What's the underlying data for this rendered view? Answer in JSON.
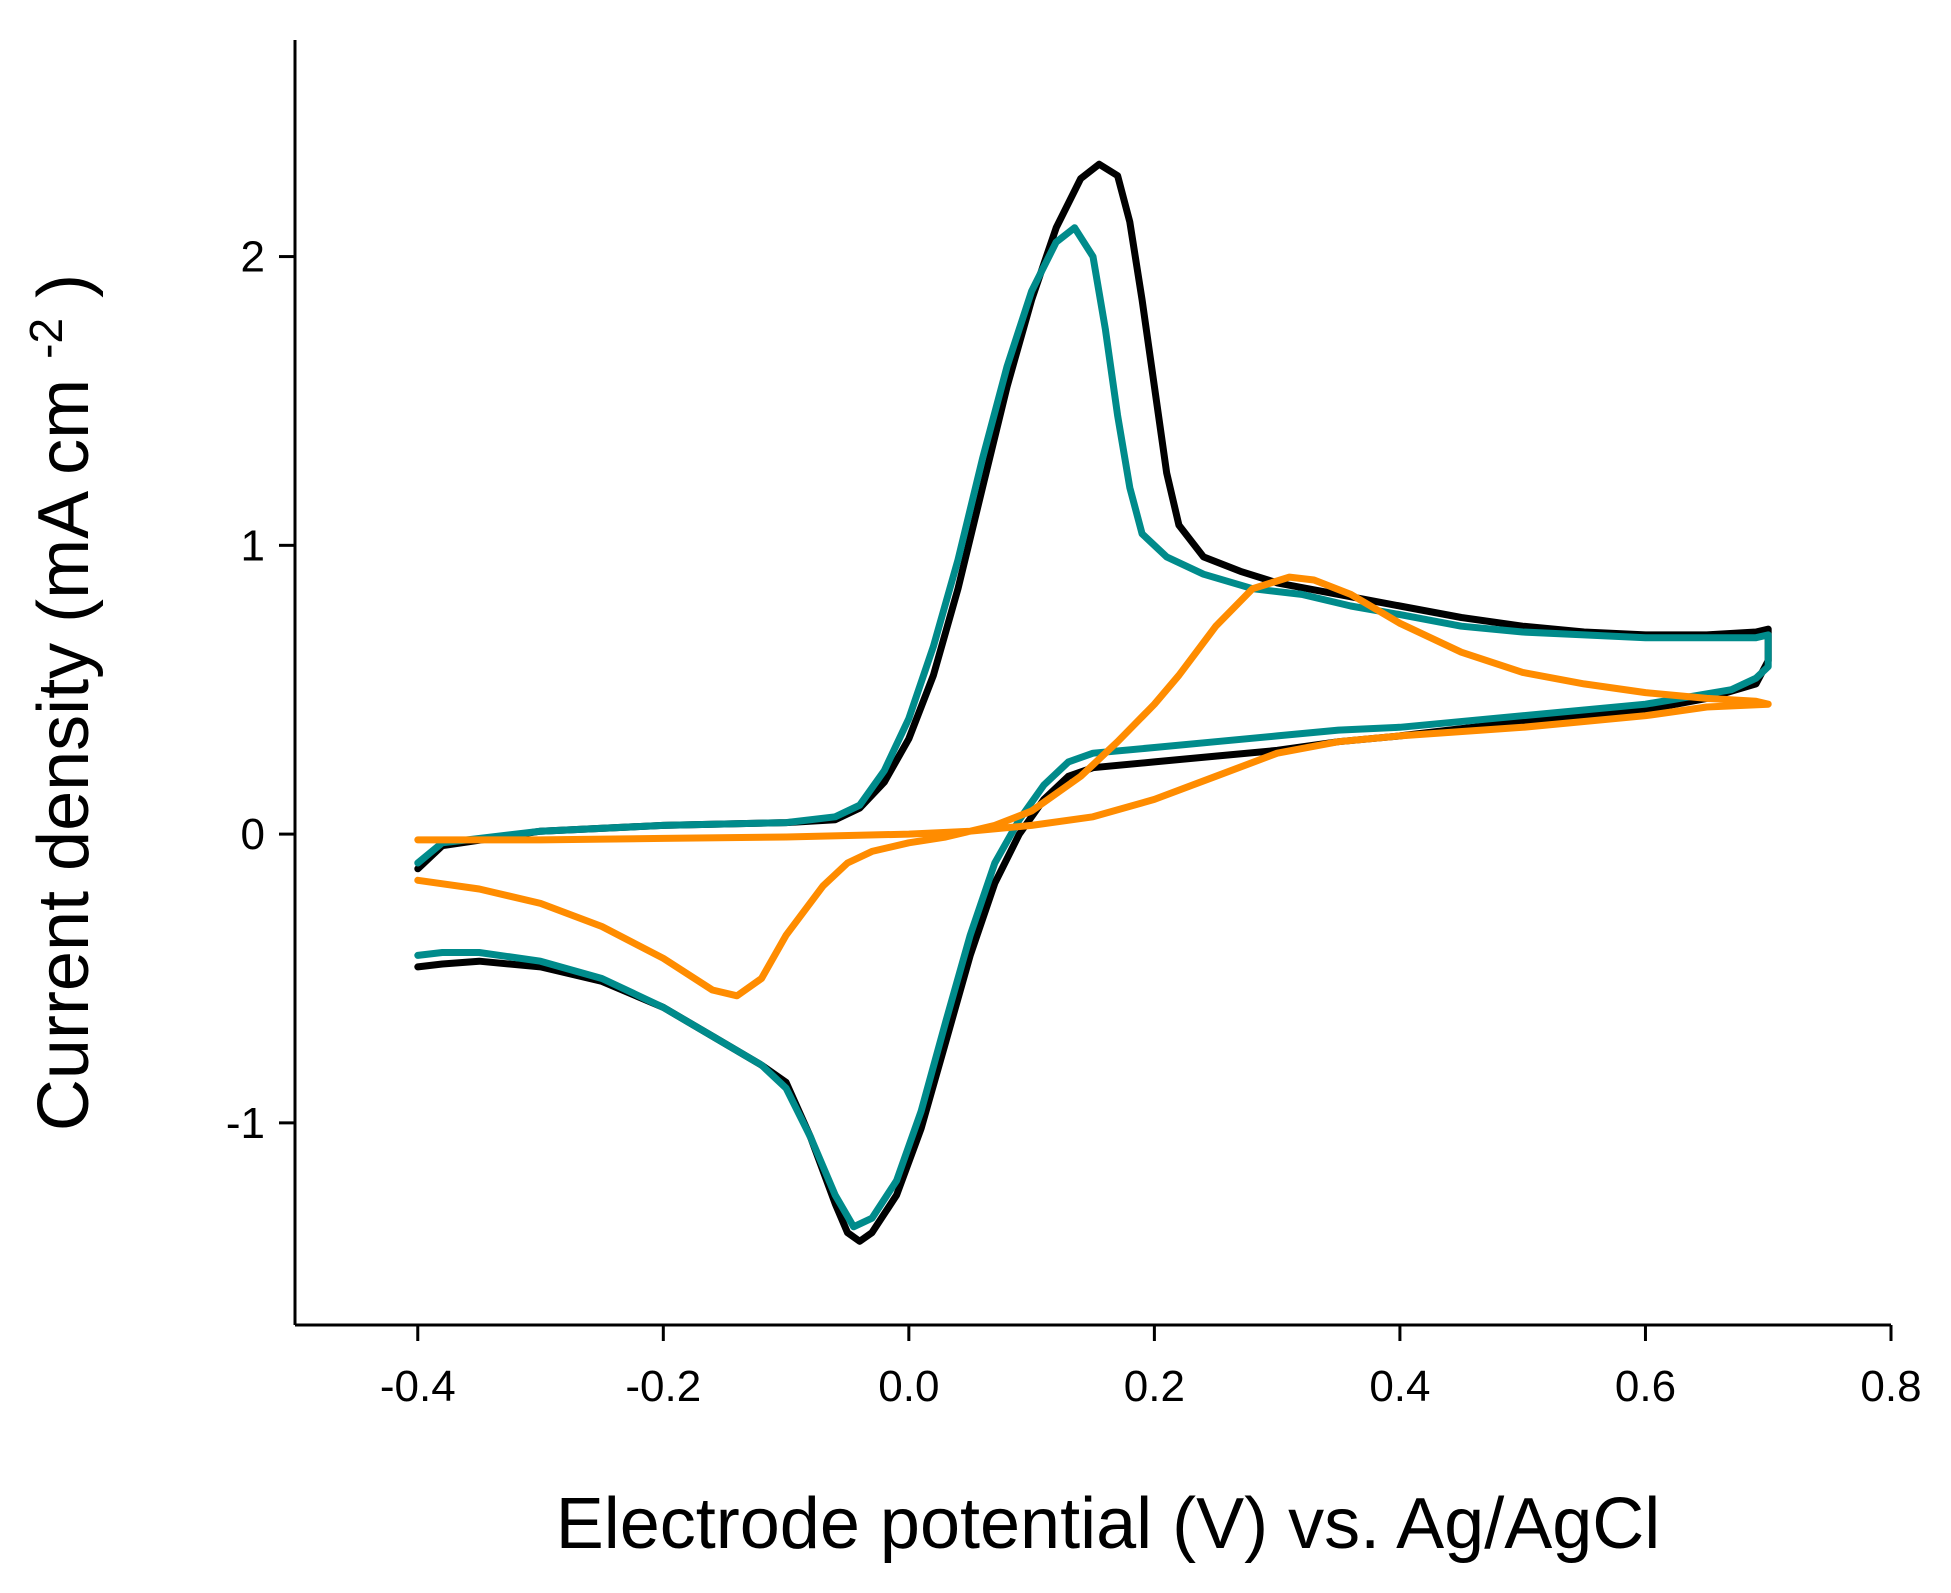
{
  "chart_data": {
    "type": "line",
    "title": "",
    "xlabel": "Electrode potential (V) vs. Ag/AgCl",
    "ylabel": {
      "main": "Current density (mA cm",
      "sup": "-2",
      "close": ")"
    },
    "xlim": [
      -0.5,
      0.8
    ],
    "ylim": [
      -1.7,
      2.75
    ],
    "x_ticks": [
      {
        "value": -0.4,
        "label": "-0.4"
      },
      {
        "value": -0.2,
        "label": "-0.2"
      },
      {
        "value": 0.0,
        "label": "0.0"
      },
      {
        "value": 0.2,
        "label": "0.2"
      },
      {
        "value": 0.4,
        "label": "0.4"
      },
      {
        "value": 0.6,
        "label": "0.6"
      },
      {
        "value": 0.8,
        "label": "0.8"
      }
    ],
    "y_ticks": [
      {
        "value": -1,
        "label": "-1"
      },
      {
        "value": 0,
        "label": "0"
      },
      {
        "value": 1,
        "label": "1"
      },
      {
        "value": 2,
        "label": "2"
      }
    ],
    "grid": false,
    "legend": "none",
    "series": [
      {
        "color": "#000000",
        "points": [
          [
            -0.4,
            -0.12
          ],
          [
            -0.38,
            -0.04
          ],
          [
            -0.3,
            0.01
          ],
          [
            -0.2,
            0.03
          ],
          [
            -0.1,
            0.04
          ],
          [
            -0.06,
            0.05
          ],
          [
            -0.04,
            0.09
          ],
          [
            -0.02,
            0.18
          ],
          [
            0.0,
            0.33
          ],
          [
            0.02,
            0.55
          ],
          [
            0.04,
            0.85
          ],
          [
            0.06,
            1.2
          ],
          [
            0.08,
            1.55
          ],
          [
            0.1,
            1.85
          ],
          [
            0.12,
            2.1
          ],
          [
            0.14,
            2.27
          ],
          [
            0.155,
            2.32
          ],
          [
            0.17,
            2.28
          ],
          [
            0.18,
            2.12
          ],
          [
            0.19,
            1.85
          ],
          [
            0.2,
            1.55
          ],
          [
            0.21,
            1.25
          ],
          [
            0.22,
            1.07
          ],
          [
            0.24,
            0.96
          ],
          [
            0.27,
            0.91
          ],
          [
            0.3,
            0.87
          ],
          [
            0.35,
            0.83
          ],
          [
            0.4,
            0.79
          ],
          [
            0.45,
            0.75
          ],
          [
            0.5,
            0.72
          ],
          [
            0.55,
            0.7
          ],
          [
            0.6,
            0.69
          ],
          [
            0.65,
            0.69
          ],
          [
            0.69,
            0.7
          ],
          [
            0.7,
            0.71
          ],
          [
            0.7,
            0.6
          ],
          [
            0.69,
            0.52
          ],
          [
            0.65,
            0.47
          ],
          [
            0.6,
            0.43
          ],
          [
            0.5,
            0.39
          ],
          [
            0.4,
            0.34
          ],
          [
            0.35,
            0.32
          ],
          [
            0.3,
            0.29
          ],
          [
            0.25,
            0.27
          ],
          [
            0.2,
            0.25
          ],
          [
            0.15,
            0.23
          ],
          [
            0.13,
            0.2
          ],
          [
            0.11,
            0.12
          ],
          [
            0.09,
            0.0
          ],
          [
            0.07,
            -0.17
          ],
          [
            0.05,
            -0.42
          ],
          [
            0.03,
            -0.72
          ],
          [
            0.01,
            -1.02
          ],
          [
            -0.01,
            -1.25
          ],
          [
            -0.03,
            -1.38
          ],
          [
            -0.04,
            -1.41
          ],
          [
            -0.05,
            -1.38
          ],
          [
            -0.06,
            -1.28
          ],
          [
            -0.08,
            -1.05
          ],
          [
            -0.1,
            -0.86
          ],
          [
            -0.12,
            -0.8
          ],
          [
            -0.16,
            -0.7
          ],
          [
            -0.2,
            -0.6
          ],
          [
            -0.25,
            -0.51
          ],
          [
            -0.3,
            -0.46
          ],
          [
            -0.35,
            -0.44
          ],
          [
            -0.38,
            -0.45
          ],
          [
            -0.4,
            -0.46
          ]
        ]
      },
      {
        "color": "#008B8B",
        "points": [
          [
            -0.4,
            -0.1
          ],
          [
            -0.38,
            -0.03
          ],
          [
            -0.3,
            0.01
          ],
          [
            -0.2,
            0.03
          ],
          [
            -0.1,
            0.04
          ],
          [
            -0.06,
            0.06
          ],
          [
            -0.04,
            0.1
          ],
          [
            -0.02,
            0.22
          ],
          [
            0.0,
            0.4
          ],
          [
            0.02,
            0.65
          ],
          [
            0.04,
            0.95
          ],
          [
            0.06,
            1.3
          ],
          [
            0.08,
            1.62
          ],
          [
            0.1,
            1.88
          ],
          [
            0.12,
            2.05
          ],
          [
            0.135,
            2.1
          ],
          [
            0.15,
            2.0
          ],
          [
            0.16,
            1.75
          ],
          [
            0.17,
            1.45
          ],
          [
            0.18,
            1.2
          ],
          [
            0.19,
            1.04
          ],
          [
            0.21,
            0.96
          ],
          [
            0.24,
            0.9
          ],
          [
            0.28,
            0.85
          ],
          [
            0.32,
            0.83
          ],
          [
            0.36,
            0.79
          ],
          [
            0.4,
            0.76
          ],
          [
            0.45,
            0.72
          ],
          [
            0.5,
            0.7
          ],
          [
            0.55,
            0.69
          ],
          [
            0.6,
            0.68
          ],
          [
            0.65,
            0.68
          ],
          [
            0.69,
            0.68
          ],
          [
            0.7,
            0.69
          ],
          [
            0.7,
            0.58
          ],
          [
            0.69,
            0.54
          ],
          [
            0.67,
            0.5
          ],
          [
            0.6,
            0.45
          ],
          [
            0.5,
            0.41
          ],
          [
            0.4,
            0.37
          ],
          [
            0.35,
            0.36
          ],
          [
            0.3,
            0.34
          ],
          [
            0.25,
            0.32
          ],
          [
            0.2,
            0.3
          ],
          [
            0.15,
            0.28
          ],
          [
            0.13,
            0.25
          ],
          [
            0.11,
            0.17
          ],
          [
            0.09,
            0.05
          ],
          [
            0.07,
            -0.1
          ],
          [
            0.05,
            -0.35
          ],
          [
            0.03,
            -0.65
          ],
          [
            0.01,
            -0.96
          ],
          [
            -0.01,
            -1.2
          ],
          [
            -0.03,
            -1.33
          ],
          [
            -0.045,
            -1.36
          ],
          [
            -0.06,
            -1.25
          ],
          [
            -0.08,
            -1.05
          ],
          [
            -0.1,
            -0.88
          ],
          [
            -0.12,
            -0.8
          ],
          [
            -0.16,
            -0.7
          ],
          [
            -0.2,
            -0.6
          ],
          [
            -0.25,
            -0.5
          ],
          [
            -0.3,
            -0.44
          ],
          [
            -0.35,
            -0.41
          ],
          [
            -0.38,
            -0.41
          ],
          [
            -0.4,
            -0.42
          ]
        ]
      },
      {
        "color": "#FF8C00",
        "points": [
          [
            -0.4,
            -0.02
          ],
          [
            -0.3,
            -0.02
          ],
          [
            -0.2,
            -0.015
          ],
          [
            -0.1,
            -0.01
          ],
          [
            0.0,
            0.0
          ],
          [
            0.05,
            0.01
          ],
          [
            0.1,
            0.03
          ],
          [
            0.15,
            0.06
          ],
          [
            0.2,
            0.12
          ],
          [
            0.25,
            0.2
          ],
          [
            0.3,
            0.28
          ],
          [
            0.35,
            0.32
          ],
          [
            0.4,
            0.34
          ],
          [
            0.5,
            0.37
          ],
          [
            0.6,
            0.41
          ],
          [
            0.65,
            0.44
          ],
          [
            0.7,
            0.45
          ],
          [
            0.69,
            0.46
          ],
          [
            0.65,
            0.47
          ],
          [
            0.6,
            0.49
          ],
          [
            0.55,
            0.52
          ],
          [
            0.5,
            0.56
          ],
          [
            0.45,
            0.63
          ],
          [
            0.4,
            0.73
          ],
          [
            0.36,
            0.83
          ],
          [
            0.33,
            0.88
          ],
          [
            0.31,
            0.89
          ],
          [
            0.28,
            0.85
          ],
          [
            0.25,
            0.72
          ],
          [
            0.22,
            0.55
          ],
          [
            0.2,
            0.45
          ],
          [
            0.17,
            0.32
          ],
          [
            0.14,
            0.2
          ],
          [
            0.1,
            0.08
          ],
          [
            0.07,
            0.03
          ],
          [
            0.03,
            -0.01
          ],
          [
            0.0,
            -0.03
          ],
          [
            -0.03,
            -0.06
          ],
          [
            -0.05,
            -0.1
          ],
          [
            -0.07,
            -0.18
          ],
          [
            -0.1,
            -0.35
          ],
          [
            -0.12,
            -0.5
          ],
          [
            -0.14,
            -0.56
          ],
          [
            -0.16,
            -0.54
          ],
          [
            -0.2,
            -0.43
          ],
          [
            -0.25,
            -0.32
          ],
          [
            -0.3,
            -0.24
          ],
          [
            -0.35,
            -0.19
          ],
          [
            -0.4,
            -0.16
          ]
        ]
      }
    ]
  }
}
